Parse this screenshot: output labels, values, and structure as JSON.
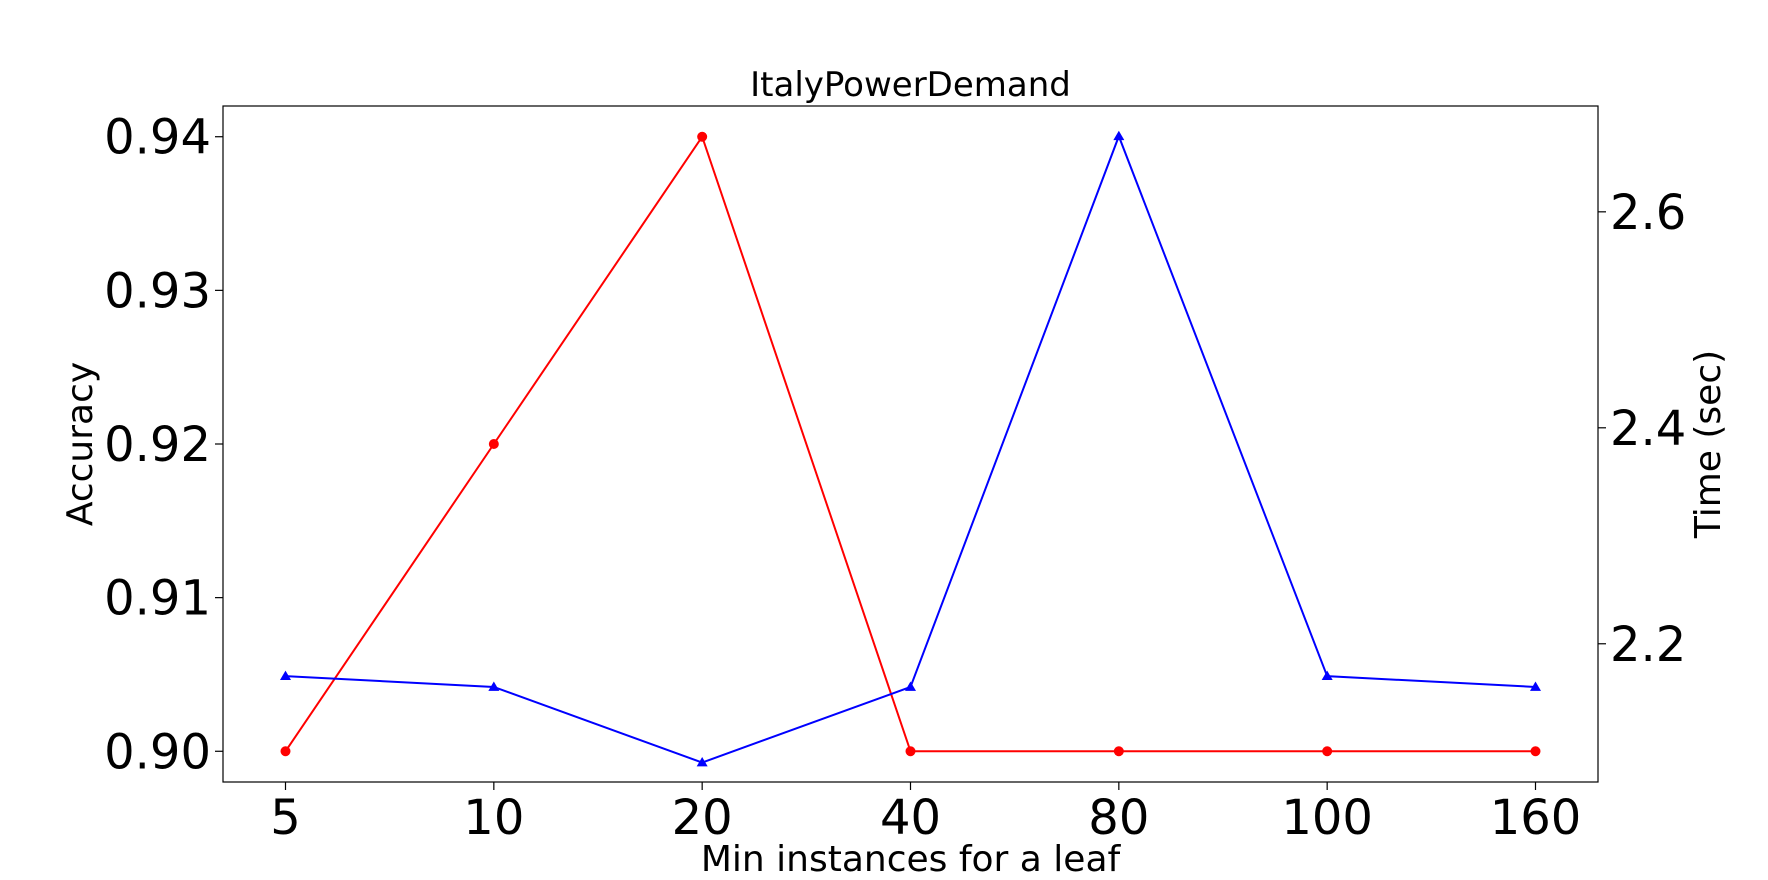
{
  "chart_data": {
    "type": "line",
    "title": "ItalyPowerDemand",
    "xlabel": "Min instances for a leaf",
    "ylabel_left": "Accuracy",
    "ylabel_right": "Time (sec)",
    "categories": [
      "5",
      "10",
      "20",
      "40",
      "80",
      "100",
      "160"
    ],
    "y_left": {
      "ylim": [
        0.898,
        0.942
      ],
      "ticks": [
        "0.90",
        "0.91",
        "0.92",
        "0.93",
        "0.94"
      ],
      "tick_values": [
        0.9,
        0.91,
        0.92,
        0.93,
        0.94
      ]
    },
    "y_right": {
      "ylim": [
        2.072,
        2.698
      ],
      "ticks": [
        "2.2",
        "2.4",
        "2.6"
      ],
      "tick_values": [
        2.2,
        2.4,
        2.6
      ]
    },
    "grid": false,
    "series": [
      {
        "axis": "left",
        "color": "#ff0000",
        "marker": "circle",
        "values": [
          0.9,
          0.92,
          0.94,
          0.9,
          0.9,
          0.9,
          0.9
        ]
      },
      {
        "axis": "right",
        "color": "#0000ff",
        "marker": "triangle",
        "values": [
          2.17,
          2.16,
          2.09,
          2.16,
          2.67,
          2.17,
          2.16
        ]
      }
    ]
  }
}
